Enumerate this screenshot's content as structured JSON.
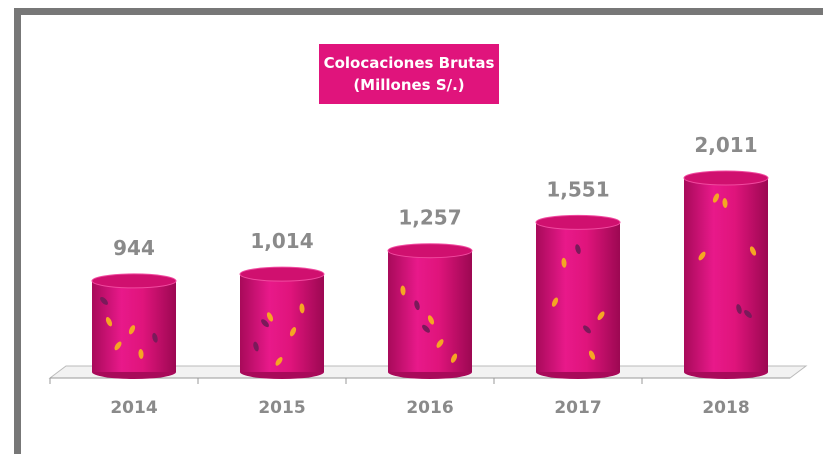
{
  "chart_data": {
    "type": "cylinder",
    "title": "Colocaciones Brutas (Millones S/.)",
    "categories": [
      "2014",
      "2015",
      "2016",
      "2017",
      "2018"
    ],
    "values": [
      944,
      1014,
      1257,
      1551,
      2011
    ],
    "value_labels": [
      "944",
      "1,014",
      "1,257",
      "1,551",
      "2,011"
    ],
    "color": "#e0147c"
  }
}
